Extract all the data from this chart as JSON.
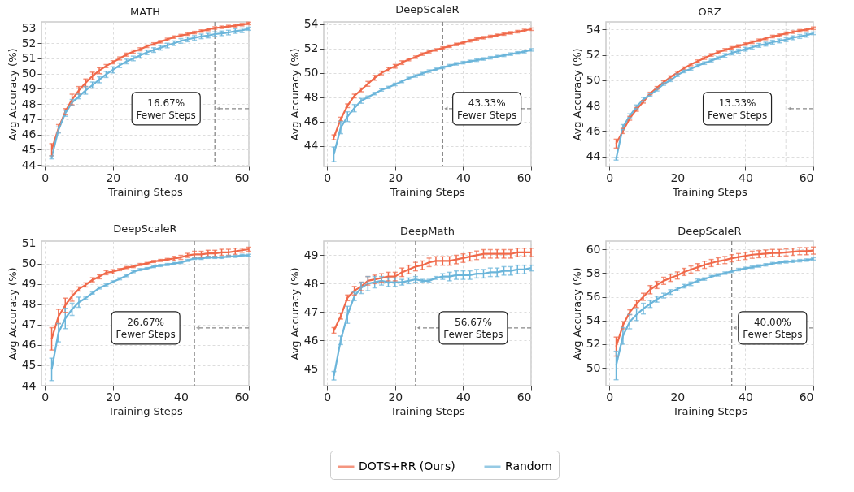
{
  "chart_data": [
    {
      "type": "line",
      "title": "MATH",
      "xlabel": "Training Steps",
      "ylabel": "Avg Accuracy (%)",
      "xlim": [
        -1,
        60
      ],
      "ylim": [
        43.9,
        53.4
      ],
      "xticks": [
        0,
        20,
        40,
        60
      ],
      "yticks": [
        44,
        45,
        46,
        47,
        48,
        49,
        50,
        51,
        52,
        53
      ],
      "grid": true,
      "legend": "bottom",
      "marker": "none",
      "line_style": "solid",
      "x": [
        2,
        4,
        6,
        8,
        10,
        12,
        14,
        16,
        18,
        20,
        22,
        24,
        26,
        28,
        30,
        32,
        34,
        36,
        38,
        40,
        42,
        44,
        46,
        48,
        50,
        52,
        54,
        56,
        58,
        60
      ],
      "series": [
        {
          "name": "DOTS+RR (Ours)",
          "color": "#f0694a",
          "values": [
            45.0,
            46.4,
            47.5,
            48.3,
            48.9,
            49.4,
            49.85,
            50.2,
            50.5,
            50.75,
            51.0,
            51.25,
            51.45,
            51.6,
            51.8,
            51.95,
            52.1,
            52.25,
            52.4,
            52.5,
            52.6,
            52.7,
            52.8,
            52.9,
            53.0,
            53.05,
            53.1,
            53.15,
            53.22,
            53.3
          ],
          "errors": [
            0.4,
            0.25,
            0.2,
            0.35,
            0.25,
            0.25,
            0.25,
            0.2,
            0.1,
            0.1,
            0.1,
            0.1,
            0.1,
            0.1,
            0.08,
            0.08,
            0.08,
            0.08,
            0.08,
            0.08,
            0.08,
            0.08,
            0.08,
            0.08,
            0.08,
            0.08,
            0.08,
            0.08,
            0.08,
            0.08
          ]
        },
        {
          "name": "Random",
          "color": "#6bb5da",
          "values": [
            44.5,
            46.3,
            47.4,
            48.1,
            48.5,
            48.9,
            49.25,
            49.6,
            49.95,
            50.25,
            50.55,
            50.8,
            51.0,
            51.2,
            51.4,
            51.55,
            51.7,
            51.85,
            52.0,
            52.15,
            52.25,
            52.35,
            52.45,
            52.5,
            52.6,
            52.65,
            52.7,
            52.8,
            52.85,
            52.95
          ],
          "errors": [
            0.1,
            0.2,
            0.2,
            0.2,
            0.15,
            0.25,
            0.2,
            0.2,
            0.2,
            0.2,
            0.15,
            0.15,
            0.15,
            0.15,
            0.15,
            0.15,
            0.15,
            0.15,
            0.15,
            0.15,
            0.15,
            0.15,
            0.15,
            0.15,
            0.15,
            0.15,
            0.15,
            0.15,
            0.15,
            0.1
          ]
        }
      ],
      "ref_lines": [
        {
          "axis": "x",
          "value": 50,
          "color": "#888888",
          "line_style": "dashed"
        }
      ],
      "annotations": [
        "16.67% Fewer Steps"
      ]
    },
    {
      "type": "line",
      "title": "DeepScaleR",
      "xlabel": "Training Steps",
      "ylabel": "Avg Accuracy (%)",
      "xlim": [
        -1,
        60
      ],
      "ylim": [
        42.3,
        54.2
      ],
      "xticks": [
        0,
        20,
        40,
        60
      ],
      "yticks": [
        44,
        46,
        48,
        50,
        52,
        54
      ],
      "grid": true,
      "legend": "bottom",
      "marker": "none",
      "line_style": "solid",
      "x": [
        2,
        4,
        6,
        8,
        10,
        12,
        14,
        16,
        18,
        20,
        22,
        24,
        26,
        28,
        30,
        32,
        34,
        36,
        38,
        40,
        42,
        44,
        46,
        48,
        50,
        52,
        54,
        56,
        58,
        60
      ],
      "series": [
        {
          "name": "DOTS+RR (Ours)",
          "color": "#f0694a",
          "values": [
            44.7,
            46.2,
            47.3,
            48.1,
            48.6,
            49.1,
            49.6,
            50.0,
            50.3,
            50.55,
            50.85,
            51.1,
            51.3,
            51.55,
            51.75,
            51.9,
            52.05,
            52.2,
            52.35,
            52.5,
            52.65,
            52.8,
            52.9,
            53.0,
            53.1,
            53.2,
            53.3,
            53.4,
            53.5,
            53.6
          ],
          "errors": [
            0.2,
            0.15,
            0.15,
            0.15,
            0.15,
            0.2,
            0.2,
            0.15,
            0.15,
            0.15,
            0.15,
            0.1,
            0.1,
            0.1,
            0.1,
            0.1,
            0.1,
            0.1,
            0.1,
            0.1,
            0.1,
            0.1,
            0.1,
            0.1,
            0.1,
            0.1,
            0.1,
            0.1,
            0.1,
            0.1
          ]
        },
        {
          "name": "Random",
          "color": "#6bb5da",
          "values": [
            43.3,
            45.5,
            46.4,
            47.1,
            47.7,
            48.0,
            48.3,
            48.6,
            48.8,
            49.05,
            49.3,
            49.55,
            49.75,
            49.95,
            50.15,
            50.3,
            50.45,
            50.6,
            50.75,
            50.85,
            50.95,
            51.05,
            51.15,
            51.25,
            51.35,
            51.45,
            51.55,
            51.65,
            51.75,
            51.9
          ],
          "errors": [
            0.6,
            0.5,
            0.4,
            0.3,
            0.2,
            0.1,
            0.1,
            0.1,
            0.1,
            0.1,
            0.1,
            0.1,
            0.1,
            0.1,
            0.1,
            0.1,
            0.1,
            0.1,
            0.1,
            0.1,
            0.1,
            0.1,
            0.1,
            0.1,
            0.1,
            0.1,
            0.1,
            0.1,
            0.1,
            0.1
          ]
        }
      ],
      "ref_lines": [
        {
          "axis": "x",
          "value": 34,
          "color": "#888888",
          "line_style": "dashed"
        }
      ],
      "annotations": [
        "43.33% Fewer Steps"
      ]
    },
    {
      "type": "line",
      "title": "ORZ",
      "xlabel": "Training Steps",
      "ylabel": "Avg Accuracy (%)",
      "xlim": [
        -1,
        60
      ],
      "ylim": [
        43.2,
        54.6
      ],
      "xticks": [
        0,
        20,
        40,
        60
      ],
      "yticks": [
        44,
        46,
        48,
        50,
        52,
        54
      ],
      "grid": true,
      "legend": "bottom",
      "marker": "none",
      "line_style": "solid",
      "x": [
        2,
        4,
        6,
        8,
        10,
        12,
        14,
        16,
        18,
        20,
        22,
        24,
        26,
        28,
        30,
        32,
        34,
        36,
        38,
        40,
        42,
        44,
        46,
        48,
        50,
        52,
        54,
        56,
        58,
        60
      ],
      "series": [
        {
          "name": "DOTS+RR (Ours)",
          "color": "#f0694a",
          "values": [
            45.0,
            46.0,
            47.0,
            47.7,
            48.3,
            48.95,
            49.4,
            49.85,
            50.25,
            50.6,
            50.95,
            51.25,
            51.5,
            51.75,
            52.0,
            52.2,
            52.4,
            52.55,
            52.7,
            52.85,
            53.0,
            53.15,
            53.3,
            53.45,
            53.55,
            53.7,
            53.8,
            53.9,
            54.0,
            54.1
          ],
          "errors": [
            0.35,
            0.2,
            0.15,
            0.15,
            0.1,
            0.1,
            0.1,
            0.1,
            0.1,
            0.1,
            0.1,
            0.1,
            0.1,
            0.1,
            0.1,
            0.1,
            0.1,
            0.1,
            0.1,
            0.1,
            0.1,
            0.1,
            0.1,
            0.1,
            0.1,
            0.1,
            0.1,
            0.1,
            0.1,
            0.1
          ]
        },
        {
          "name": "Random",
          "color": "#6bb5da",
          "values": [
            43.8,
            46.3,
            47.2,
            47.9,
            48.5,
            48.85,
            49.25,
            49.7,
            50.0,
            50.4,
            50.7,
            50.9,
            51.15,
            51.35,
            51.55,
            51.75,
            51.95,
            52.15,
            52.3,
            52.45,
            52.6,
            52.75,
            52.85,
            53.0,
            53.1,
            53.2,
            53.35,
            53.45,
            53.55,
            53.7
          ],
          "errors": [
            0.1,
            0.2,
            0.15,
            0.15,
            0.15,
            0.1,
            0.1,
            0.1,
            0.1,
            0.1,
            0.1,
            0.1,
            0.1,
            0.1,
            0.1,
            0.1,
            0.15,
            0.15,
            0.15,
            0.15,
            0.15,
            0.15,
            0.15,
            0.15,
            0.15,
            0.15,
            0.15,
            0.15,
            0.15,
            0.1
          ]
        }
      ],
      "ref_lines": [
        {
          "axis": "x",
          "value": 52,
          "color": "#888888",
          "line_style": "dashed"
        }
      ],
      "annotations": [
        "13.33% Fewer Steps"
      ]
    },
    {
      "type": "line",
      "title": "DeepScaleR",
      "xlabel": "Training Steps",
      "ylabel": "Avg Accuracy (%)",
      "xlim": [
        -1,
        60
      ],
      "ylim": [
        44,
        51.1
      ],
      "xticks": [
        0,
        20,
        40,
        60
      ],
      "yticks": [
        44,
        45,
        46,
        47,
        48,
        49,
        50,
        51
      ],
      "grid": true,
      "legend": "bottom",
      "marker": "none",
      "line_style": "solid",
      "x": [
        2,
        4,
        6,
        8,
        10,
        12,
        14,
        16,
        18,
        20,
        22,
        24,
        26,
        28,
        30,
        32,
        34,
        36,
        38,
        40,
        42,
        44,
        46,
        48,
        50,
        52,
        54,
        56,
        58,
        60
      ],
      "series": [
        {
          "name": "DOTS+RR (Ours)",
          "color": "#f0694a",
          "values": [
            46.3,
            47.4,
            47.95,
            48.4,
            48.75,
            48.95,
            49.2,
            49.35,
            49.55,
            49.6,
            49.7,
            49.8,
            49.85,
            49.95,
            50.0,
            50.1,
            50.15,
            50.2,
            50.25,
            50.3,
            50.4,
            50.45,
            50.45,
            50.5,
            50.5,
            50.55,
            50.55,
            50.6,
            50.65,
            50.7
          ],
          "errors": [
            0.55,
            0.35,
            0.35,
            0.25,
            0.1,
            0.1,
            0.1,
            0.1,
            0.1,
            0.1,
            0.05,
            0.05,
            0.05,
            0.05,
            0.05,
            0.05,
            0.05,
            0.05,
            0.1,
            0.1,
            0.1,
            0.15,
            0.15,
            0.15,
            0.15,
            0.15,
            0.15,
            0.15,
            0.1,
            0.1
          ]
        },
        {
          "name": "Random",
          "color": "#6bb5da",
          "values": [
            44.8,
            46.6,
            47.3,
            47.75,
            48.1,
            48.3,
            48.55,
            48.8,
            48.95,
            49.1,
            49.25,
            49.4,
            49.6,
            49.7,
            49.75,
            49.85,
            49.9,
            49.95,
            50.0,
            50.05,
            50.15,
            50.25,
            50.25,
            50.3,
            50.3,
            50.3,
            50.35,
            50.35,
            50.4,
            50.4
          ],
          "errors": [
            0.55,
            0.45,
            0.5,
            0.3,
            0.25,
            0.05,
            0.05,
            0.05,
            0.05,
            0.05,
            0.05,
            0.05,
            0.05,
            0.05,
            0.05,
            0.05,
            0.05,
            0.05,
            0.05,
            0.05,
            0.05,
            0.05,
            0.05,
            0.05,
            0.05,
            0.05,
            0.05,
            0.05,
            0.05,
            0.05
          ]
        }
      ],
      "ref_lines": [
        {
          "axis": "x",
          "value": 44,
          "color": "#888888",
          "line_style": "dashed"
        }
      ],
      "annotations": [
        "26.67% Fewer Steps"
      ]
    },
    {
      "type": "line",
      "title": "DeepMath",
      "xlabel": "Training Steps",
      "ylabel": "Avg Accuracy (%)",
      "xlim": [
        -1,
        60
      ],
      "ylim": [
        44.4,
        49.5
      ],
      "xticks": [
        0,
        20,
        40,
        60
      ],
      "yticks": [
        45,
        46,
        47,
        48,
        49
      ],
      "grid": true,
      "legend": "bottom",
      "marker": "none",
      "line_style": "solid",
      "x": [
        2,
        4,
        6,
        8,
        10,
        12,
        14,
        16,
        18,
        20,
        22,
        24,
        26,
        28,
        30,
        32,
        34,
        36,
        38,
        40,
        42,
        44,
        46,
        48,
        50,
        52,
        54,
        56,
        58,
        60
      ],
      "series": [
        {
          "name": "DOTS+RR (Ours)",
          "color": "#f0694a",
          "values": [
            46.35,
            46.85,
            47.5,
            47.75,
            47.9,
            48.1,
            48.15,
            48.2,
            48.25,
            48.25,
            48.4,
            48.5,
            48.6,
            48.65,
            48.75,
            48.8,
            48.8,
            48.8,
            48.85,
            48.9,
            48.95,
            49.0,
            49.05,
            49.05,
            49.05,
            49.05,
            49.05,
            49.1,
            49.1,
            49.1
          ],
          "errors": [
            0.1,
            0.1,
            0.1,
            0.15,
            0.15,
            0.15,
            0.15,
            0.15,
            0.15,
            0.15,
            0.15,
            0.15,
            0.15,
            0.15,
            0.15,
            0.15,
            0.15,
            0.15,
            0.15,
            0.15,
            0.15,
            0.15,
            0.15,
            0.15,
            0.15,
            0.15,
            0.15,
            0.15,
            0.15,
            0.15
          ]
        },
        {
          "name": "Random",
          "color": "#6bb5da",
          "values": [
            44.75,
            46.0,
            46.9,
            47.55,
            47.85,
            48.0,
            48.05,
            48.1,
            48.05,
            48.05,
            48.05,
            48.1,
            48.15,
            48.1,
            48.1,
            48.2,
            48.25,
            48.25,
            48.3,
            48.3,
            48.3,
            48.35,
            48.35,
            48.4,
            48.4,
            48.45,
            48.45,
            48.5,
            48.5,
            48.55
          ],
          "errors": [
            0.15,
            0.15,
            0.3,
            0.15,
            0.2,
            0.25,
            0.2,
            0.15,
            0.15,
            0.15,
            0.1,
            0.1,
            0.1,
            0.05,
            0.05,
            0.05,
            0.1,
            0.15,
            0.15,
            0.15,
            0.15,
            0.15,
            0.15,
            0.15,
            0.15,
            0.15,
            0.15,
            0.15,
            0.15,
            0.1
          ]
        }
      ],
      "ref_lines": [
        {
          "axis": "x",
          "value": 26,
          "color": "#888888",
          "line_style": "dashed"
        }
      ],
      "annotations": [
        "56.67% Fewer Steps"
      ]
    },
    {
      "type": "line",
      "title": "DeepScaleR",
      "xlabel": "Training Steps",
      "ylabel": "Avg Accuracy (%)",
      "xlim": [
        -1,
        60
      ],
      "ylim": [
        48.5,
        60.7
      ],
      "xticks": [
        0,
        20,
        40,
        60
      ],
      "yticks": [
        50,
        52,
        54,
        56,
        58,
        60
      ],
      "grid": true,
      "legend": "bottom",
      "marker": "none",
      "line_style": "solid",
      "x": [
        2,
        4,
        6,
        8,
        10,
        12,
        14,
        16,
        18,
        20,
        22,
        24,
        26,
        28,
        30,
        32,
        34,
        36,
        38,
        40,
        42,
        44,
        46,
        48,
        50,
        52,
        54,
        56,
        58,
        60
      ],
      "series": [
        {
          "name": "DOTS+RR (Ours)",
          "color": "#f0694a",
          "values": [
            51.8,
            53.6,
            54.7,
            55.4,
            56.0,
            56.6,
            57.0,
            57.35,
            57.6,
            57.8,
            58.1,
            58.3,
            58.5,
            58.7,
            58.85,
            59.0,
            59.1,
            59.25,
            59.35,
            59.45,
            59.55,
            59.6,
            59.65,
            59.7,
            59.7,
            59.75,
            59.8,
            59.85,
            59.85,
            59.9
          ],
          "errors": [
            0.8,
            0.3,
            0.2,
            0.3,
            0.3,
            0.35,
            0.3,
            0.3,
            0.3,
            0.3,
            0.3,
            0.3,
            0.3,
            0.3,
            0.3,
            0.3,
            0.3,
            0.3,
            0.3,
            0.3,
            0.3,
            0.3,
            0.3,
            0.3,
            0.3,
            0.3,
            0.3,
            0.3,
            0.3,
            0.3
          ]
        },
        {
          "name": "Random",
          "color": "#6bb5da",
          "values": [
            50.2,
            52.7,
            53.9,
            54.5,
            55.0,
            55.4,
            55.8,
            56.1,
            56.4,
            56.65,
            56.9,
            57.1,
            57.35,
            57.5,
            57.7,
            57.85,
            58.0,
            58.15,
            58.3,
            58.4,
            58.5,
            58.6,
            58.7,
            58.8,
            58.9,
            58.95,
            59.0,
            59.05,
            59.1,
            59.2
          ],
          "errors": [
            1.2,
            0.7,
            0.6,
            0.5,
            0.45,
            0.3,
            0.25,
            0.2,
            0.2,
            0.15,
            0.15,
            0.15,
            0.15,
            0.1,
            0.1,
            0.1,
            0.1,
            0.1,
            0.1,
            0.1,
            0.1,
            0.1,
            0.1,
            0.1,
            0.1,
            0.1,
            0.1,
            0.1,
            0.1,
            0.1
          ]
        }
      ],
      "ref_lines": [
        {
          "axis": "x",
          "value": 36,
          "color": "#888888",
          "line_style": "dashed"
        }
      ],
      "annotations": [
        "40.00% Fewer Steps"
      ]
    }
  ]
}
